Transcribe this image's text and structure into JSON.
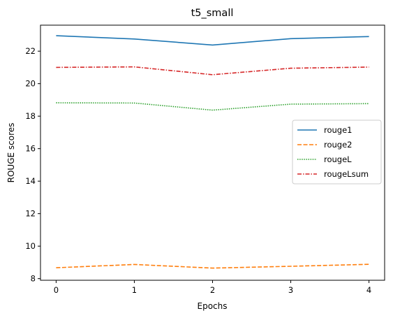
{
  "chart_data": {
    "type": "line",
    "title": "t5_small",
    "xlabel": "Epochs",
    "ylabel": "ROUGE scores",
    "x": [
      0,
      1,
      2,
      3,
      4
    ],
    "xticks": [
      "0",
      "1",
      "2",
      "3",
      "4"
    ],
    "yticks": [
      "8",
      "10",
      "12",
      "14",
      "16",
      "18",
      "20",
      "22"
    ],
    "xlim": [
      -0.2,
      4.2
    ],
    "ylim": [
      7.9,
      23.6
    ],
    "grid": false,
    "legend_position": "center-right",
    "series": [
      {
        "name": "rouge1",
        "values": [
          22.95,
          22.75,
          22.38,
          22.77,
          22.9
        ],
        "color": "#1f77b4",
        "style": "solid"
      },
      {
        "name": "rouge2",
        "values": [
          8.67,
          8.87,
          8.65,
          8.76,
          8.88
        ],
        "color": "#ff7f0e",
        "style": "dashed"
      },
      {
        "name": "rougeL",
        "values": [
          18.82,
          18.81,
          18.37,
          18.74,
          18.77
        ],
        "color": "#2ca02c",
        "style": "dotted"
      },
      {
        "name": "rougeLsum",
        "values": [
          21.0,
          21.03,
          20.55,
          20.95,
          21.02
        ],
        "color": "#d62728",
        "style": "dashdot"
      }
    ]
  }
}
